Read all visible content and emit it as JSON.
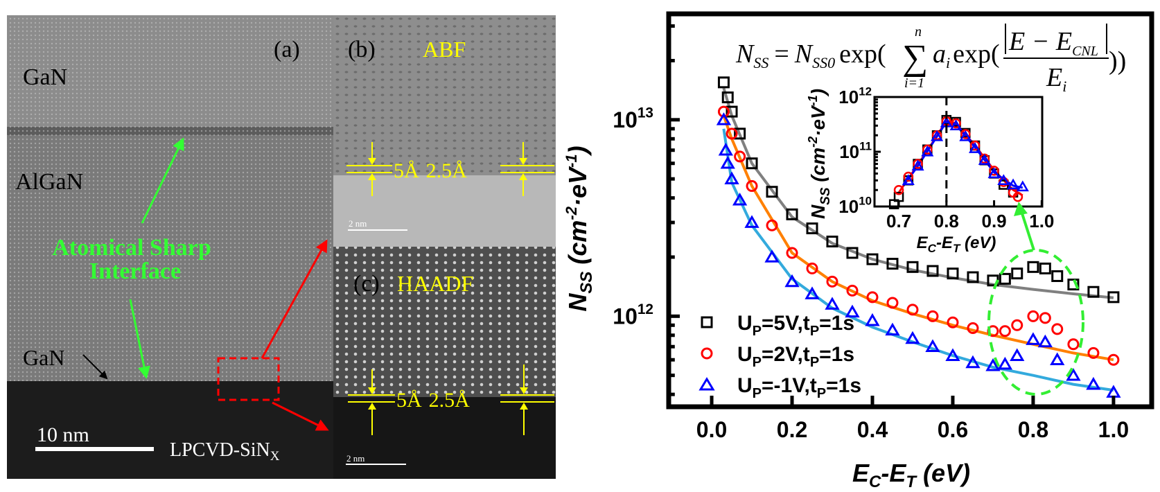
{
  "tem": {
    "panel_a": {
      "label": "(a)",
      "layer_top": "GaN",
      "layer_mid": "AlGaN",
      "layer_thin": "GaN",
      "annotation_line1": "Atomical  Sharp",
      "annotation_line2": "Interface",
      "substrate": "LPCVD-SiN",
      "substrate_sub": "X",
      "scale_bar": "10 nm"
    },
    "panel_b": {
      "label": "(b)",
      "mode": "ABF",
      "spacing_1": "5Å",
      "spacing_2": "2.5Å",
      "scale_bar": "2 nm"
    },
    "panel_c": {
      "label": "(c)",
      "mode": "HAADF",
      "spacing_1": "5Å",
      "spacing_2": "2.5Å",
      "scale_bar": "2 nm"
    },
    "colors": {
      "annotation": "#33ff33",
      "label": "#ffff00",
      "zoom_box": "#ff0000"
    }
  },
  "equation": {
    "lhs": "N",
    "lhs_sub": "SS",
    "eq": "=",
    "n0": "N",
    "n0_sub": "SS0",
    "exp1": "exp(",
    "sum": "∑",
    "sum_top": "n",
    "sum_bottom": "i=1",
    "a": "a",
    "a_sub": "i",
    "exp2": "exp(",
    "num": "E − E",
    "num_sub": "CNL",
    "den": "E",
    "den_sub": "i",
    "close": "))"
  },
  "chart_data": [
    {
      "type": "scatter",
      "xlabel": "E",
      "xlabel_sub1": "C",
      "xlabel_mid": "-E",
      "xlabel_sub2": "T",
      "xlabel_unit": " (eV)",
      "ylabel": "N",
      "ylabel_sub": "SS",
      "ylabel_unit": " (cm",
      "ylabel_sup1": "-2",
      "ylabel_mid": "·eV",
      "ylabel_sup2": "-1",
      "ylabel_end": ")",
      "xlim": [
        -0.107,
        1.095
      ],
      "ylim": [
        346000000000.0,
        34600000000000.0
      ],
      "yscale": "log",
      "xticks": [
        "0.0",
        "0.2",
        "0.4",
        "0.6",
        "0.8",
        "1.0"
      ],
      "yticks": [
        {
          "base": "10",
          "exp": "13",
          "value": 10000000000000.0
        },
        {
          "base": "10",
          "exp": "12",
          "value": 1000000000000.0
        }
      ],
      "legend_position": "bottom-left",
      "series": [
        {
          "name": "U",
          "name_sub1": "P",
          "name_mid": "=5V,t",
          "name_sub2": "P",
          "name_end": "=1s",
          "marker": "square",
          "color": "#000000",
          "x": [
            0.03,
            0.04,
            0.05,
            0.07,
            0.1,
            0.15,
            0.2,
            0.25,
            0.3,
            0.35,
            0.4,
            0.45,
            0.5,
            0.55,
            0.6,
            0.65,
            0.7,
            0.73,
            0.76,
            0.8,
            0.83,
            0.86,
            0.9,
            0.95,
            1.0
          ],
          "y": [
            15500000000000.0,
            13000000000000.0,
            11000000000000.0,
            8500000000000.0,
            6000000000000.0,
            4300000000000.0,
            3300000000000.0,
            2800000000000.0,
            2400000000000.0,
            2100000000000.0,
            1950000000000.0,
            1850000000000.0,
            1780000000000.0,
            1700000000000.0,
            1650000000000.0,
            1580000000000.0,
            1520000000000.0,
            1550000000000.0,
            1650000000000.0,
            1780000000000.0,
            1750000000000.0,
            1600000000000.0,
            1450000000000.0,
            1330000000000.0,
            1250000000000.0
          ]
        },
        {
          "name": "U",
          "name_sub1": "P",
          "name_mid": "=2V,t",
          "name_sub2": "P",
          "name_end": "=1s",
          "marker": "circle",
          "color": "#ff0000",
          "x": [
            0.03,
            0.05,
            0.07,
            0.1,
            0.15,
            0.2,
            0.25,
            0.3,
            0.35,
            0.4,
            0.45,
            0.5,
            0.55,
            0.6,
            0.65,
            0.7,
            0.73,
            0.76,
            0.8,
            0.83,
            0.86,
            0.9,
            0.95,
            1.0
          ],
          "y": [
            11000000000000.0,
            8500000000000.0,
            6500000000000.0,
            4600000000000.0,
            2900000000000.0,
            2100000000000.0,
            1750000000000.0,
            1500000000000.0,
            1350000000000.0,
            1250000000000.0,
            1170000000000.0,
            1080000000000.0,
            1000000000000.0,
            930000000000.0,
            870000000000.0,
            840000000000.0,
            840000000000.0,
            900000000000.0,
            1000000000000.0,
            980000000000.0,
            860000000000.0,
            720000000000.0,
            650000000000.0,
            600000000000.0
          ]
        },
        {
          "name": "U",
          "name_sub1": "P",
          "name_mid": "=-1V,t",
          "name_sub2": "P",
          "name_end": "=1s",
          "marker": "triangle",
          "color": "#0000ff",
          "x": [
            0.03,
            0.035,
            0.04,
            0.05,
            0.07,
            0.1,
            0.15,
            0.2,
            0.25,
            0.3,
            0.35,
            0.4,
            0.45,
            0.5,
            0.55,
            0.6,
            0.65,
            0.7,
            0.73,
            0.76,
            0.8,
            0.83,
            0.86,
            0.9,
            0.95,
            1.0
          ],
          "y": [
            10000000000000.0,
            7000000000000.0,
            6000000000000.0,
            5000000000000.0,
            3900000000000.0,
            3000000000000.0,
            2000000000000.0,
            1500000000000.0,
            1300000000000.0,
            1150000000000.0,
            1050000000000.0,
            950000000000.0,
            850000000000.0,
            770000000000.0,
            700000000000.0,
            630000000000.0,
            580000000000.0,
            560000000000.0,
            570000000000.0,
            630000000000.0,
            760000000000.0,
            740000000000.0,
            600000000000.0,
            500000000000.0,
            450000000000.0,
            410000000000.0
          ]
        }
      ],
      "fits": [
        {
          "color": "#808080",
          "x": [
            0.03,
            0.05,
            0.1,
            0.2,
            0.3,
            0.4,
            0.5,
            0.6,
            0.7,
            0.8,
            0.9,
            1.0
          ],
          "y": [
            14500000000000.0,
            10500000000000.0,
            6000000000000.0,
            3200000000000.0,
            2350000000000.0,
            1950000000000.0,
            1720000000000.0,
            1570000000000.0,
            1450000000000.0,
            1370000000000.0,
            1300000000000.0,
            1240000000000.0
          ]
        },
        {
          "color": "#ff8000",
          "x": [
            0.03,
            0.05,
            0.1,
            0.2,
            0.3,
            0.4,
            0.5,
            0.6,
            0.7,
            0.8,
            0.9,
            1.0
          ],
          "y": [
            10500000000000.0,
            8000000000000.0,
            4600000000000.0,
            2100000000000.0,
            1500000000000.0,
            1200000000000.0,
            1030000000000.0,
            900000000000.0,
            800000000000.0,
            720000000000.0,
            650000000000.0,
            600000000000.0
          ]
        },
        {
          "color": "#33aadd",
          "x": [
            0.03,
            0.05,
            0.1,
            0.2,
            0.3,
            0.4,
            0.5,
            0.6,
            0.7,
            0.8,
            0.9,
            1.0
          ],
          "y": [
            9000000000000.0,
            4800000000000.0,
            2900000000000.0,
            1550000000000.0,
            1100000000000.0,
            880000000000.0,
            740000000000.0,
            630000000000.0,
            550000000000.0,
            500000000000.0,
            450000000000.0,
            420000000000.0
          ]
        }
      ],
      "highlight_color": "#33ee33"
    },
    {
      "type": "scatter",
      "role": "inset",
      "xlabel": "E",
      "xlabel_sub1": "C",
      "xlabel_mid": "-E",
      "xlabel_sub2": "T",
      "xlabel_unit": " (eV)",
      "ylabel": "N",
      "ylabel_sub": "SS",
      "ylabel_unit": " (cm",
      "ylabel_sup1": "-2",
      "ylabel_mid": "·eV",
      "ylabel_sup2": "-1",
      "ylabel_end": ")",
      "xlim": [
        0.649,
        1.001
      ],
      "ylim": [
        10000000000.0,
        1000000000000.0
      ],
      "yscale": "log",
      "xticks": [
        "0.7",
        "0.8",
        "0.9",
        "1.0"
      ],
      "yticks": [
        {
          "base": "10",
          "exp": "12",
          "value": 1000000000000.0
        },
        {
          "base": "10",
          "exp": "11",
          "value": 100000000000.0
        },
        {
          "base": "10",
          "exp": "10",
          "value": 10000000000.0
        }
      ],
      "reference_line_x": 0.8,
      "series": [
        {
          "marker": "square",
          "color": "#000000",
          "x": [
            0.69,
            0.7,
            0.72,
            0.74,
            0.76,
            0.78,
            0.8,
            0.82,
            0.84,
            0.86,
            0.88,
            0.9,
            0.92,
            0.94
          ],
          "y": [
            11000000000.0,
            15000000000.0,
            30000000000.0,
            60000000000.0,
            110000000000.0,
            200000000000.0,
            380000000000.0,
            350000000000.0,
            220000000000.0,
            130000000000.0,
            70000000000.0,
            40000000000.0,
            25000000000.0,
            18000000000.0
          ]
        },
        {
          "marker": "circle",
          "color": "#ff0000",
          "x": [
            0.7,
            0.72,
            0.74,
            0.76,
            0.78,
            0.8,
            0.82,
            0.84,
            0.86,
            0.88,
            0.9,
            0.92,
            0.94,
            0.95
          ],
          "y": [
            20000000000.0,
            35000000000.0,
            60000000000.0,
            110000000000.0,
            200000000000.0,
            360000000000.0,
            330000000000.0,
            210000000000.0,
            130000000000.0,
            75000000000.0,
            45000000000.0,
            28000000000.0,
            18000000000.0,
            15000000000.0
          ]
        },
        {
          "marker": "triangle",
          "color": "#0000ff",
          "x": [
            0.72,
            0.74,
            0.76,
            0.78,
            0.8,
            0.82,
            0.84,
            0.86,
            0.88,
            0.9,
            0.92,
            0.94,
            0.96
          ],
          "y": [
            30000000000.0,
            55000000000.0,
            100000000000.0,
            190000000000.0,
            340000000000.0,
            300000000000.0,
            190000000000.0,
            115000000000.0,
            70000000000.0,
            40000000000.0,
            30000000000.0,
            25000000000.0,
            23000000000.0
          ]
        }
      ],
      "fits": [
        {
          "color": "#ff0000",
          "x": [
            0.7,
            0.74,
            0.78,
            0.8,
            0.82,
            0.86,
            0.9,
            0.94,
            0.96
          ],
          "y": [
            18000000000.0,
            58000000000.0,
            195000000000.0,
            370000000000.0,
            330000000000.0,
            130000000000.0,
            46000000000.0,
            20000000000.0,
            16000000000.0
          ]
        },
        {
          "color": "#0000ff",
          "x": [
            0.71,
            0.74,
            0.78,
            0.8,
            0.82,
            0.86,
            0.9,
            0.94,
            0.96
          ],
          "y": [
            24000000000.0,
            55000000000.0,
            190000000000.0,
            350000000000.0,
            310000000000.0,
            120000000000.0,
            42000000000.0,
            24000000000.0,
            22000000000.0
          ]
        }
      ]
    }
  ]
}
